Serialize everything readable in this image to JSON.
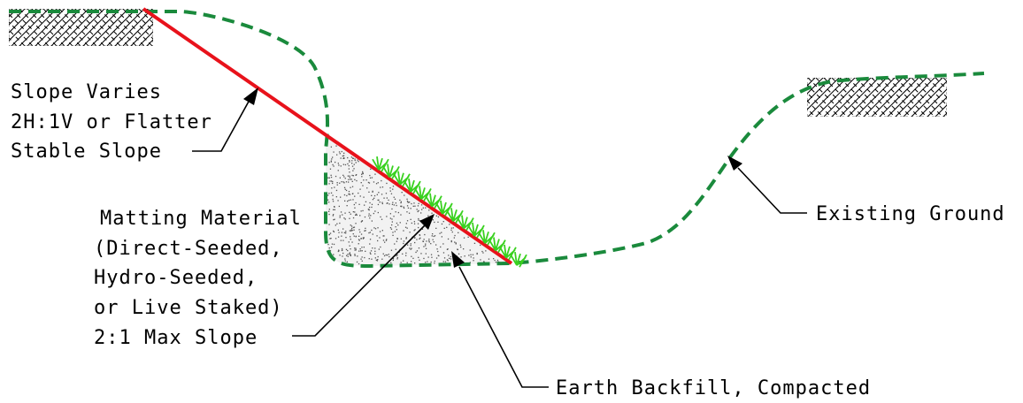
{
  "labels": {
    "slope_varies": {
      "line1": "Slope Varies",
      "line2": "2H:1V or Flatter",
      "line3": "Stable Slope"
    },
    "matting": {
      "line1": "Matting Material",
      "line2": "(Direct-Seeded,",
      "line3": "Hydro-Seeded,",
      "line4": "or Live Staked)",
      "line5": "2:1 Max Slope"
    },
    "existing_ground": "Existing Ground",
    "earth_backfill": "Earth Backfill, Compacted"
  },
  "colors": {
    "existing_ground": "#1a8a3c",
    "stable_slope": "#e8121b",
    "vegetation": "#39d11f",
    "backfill_fill": "#f2f2f2",
    "backfill_speckle": "#555555",
    "hatch": "#000000",
    "text": "#000000"
  },
  "icons": {
    "undisturbed_soil": "undisturbed-soil-hatch-icon",
    "vegetation": "grass-tuft-icon"
  }
}
